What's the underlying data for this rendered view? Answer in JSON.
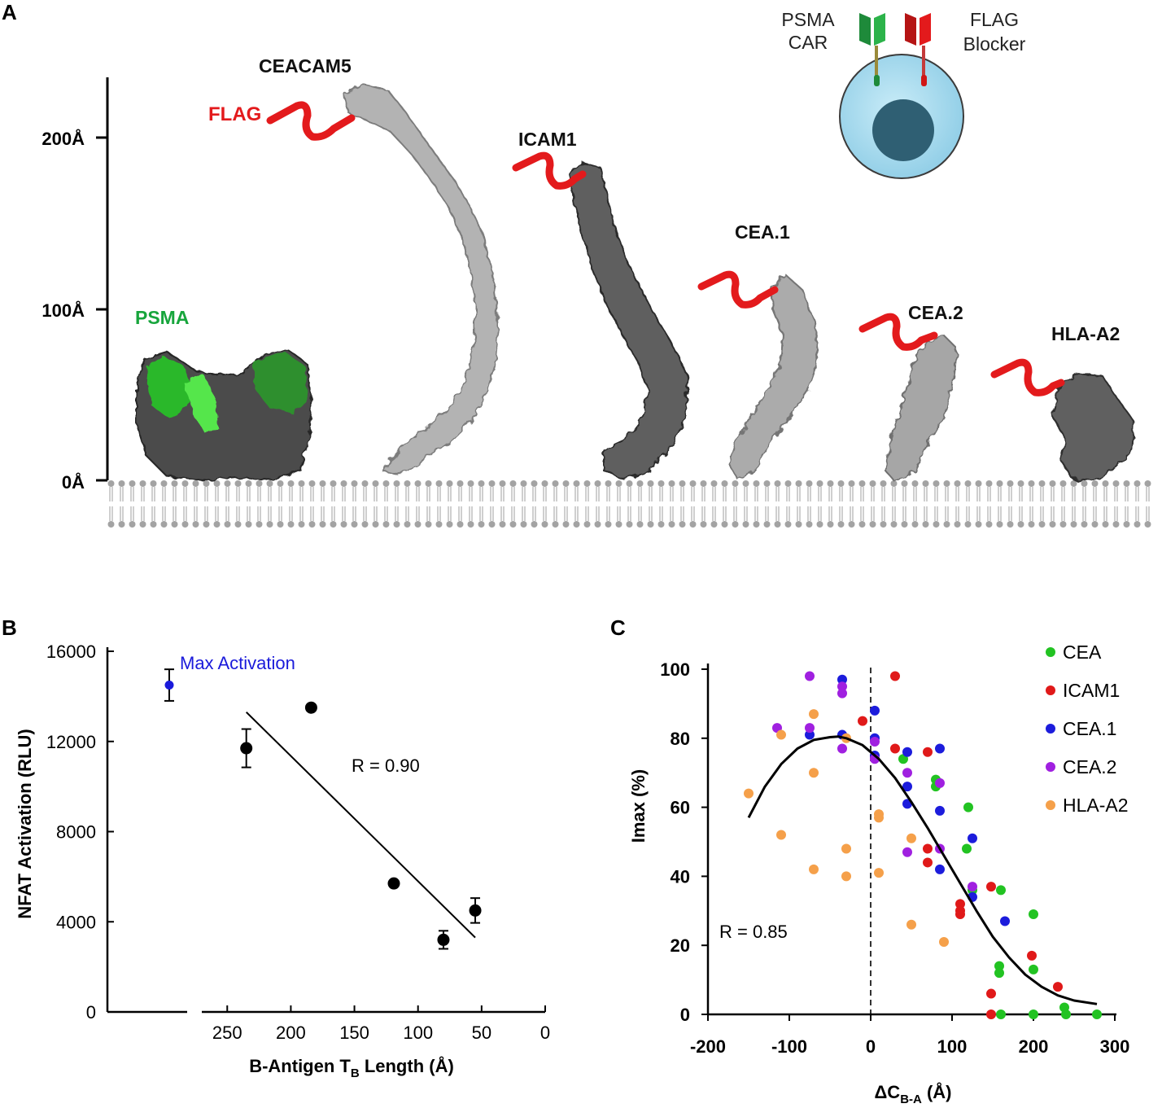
{
  "panel_A": {
    "label": "A",
    "height_ticks": [
      "200Å",
      "100Å",
      "0Å"
    ],
    "molecules": [
      "CEACAM5",
      "ICAM1",
      "CEA.1",
      "CEA.2",
      "HLA-A2"
    ],
    "psma_label": "PSMA",
    "flag_label": "FLAG",
    "inset": {
      "car_label_1": "PSMA",
      "car_label_2": "CAR",
      "blocker_label_1": "FLAG",
      "blocker_label_2": "Blocker"
    },
    "colors": {
      "flag": "#e31a1c",
      "psma": "#17a53c",
      "protein_light": "#a8a8a8",
      "protein_dark": "#5a5a5a",
      "cell": "#a9dbef",
      "nucleus": "#2f5f73"
    }
  },
  "chart_data": [
    {
      "panel": "B",
      "type": "scatter",
      "xlabel_main": "B-Antigen T",
      "xlabel_sub": "B",
      "xlabel_tail": " Length (Å)",
      "ylabel": "NFAT Activation (RLU)",
      "xlim": [
        270,
        0
      ],
      "ylim": [
        0,
        16000
      ],
      "xticks": [
        "250",
        "200",
        "150",
        "100",
        "50",
        "0"
      ],
      "yticks": [
        "0",
        "4000",
        "8000",
        "12000",
        "16000"
      ],
      "annotation": "R = 0.90",
      "max_activation": {
        "label": "Max Activation",
        "value": 14500,
        "err": 700,
        "color": "#1a1adb"
      },
      "points": [
        {
          "x": 235,
          "y": 11700,
          "err": 850
        },
        {
          "x": 184,
          "y": 13500,
          "err": 0
        },
        {
          "x": 119,
          "y": 5700,
          "err": 0
        },
        {
          "x": 80,
          "y": 3200,
          "err": 400
        },
        {
          "x": 55,
          "y": 4500,
          "err": 550
        }
      ],
      "fit_line": [
        [
          235,
          13300
        ],
        [
          55,
          3300
        ]
      ]
    },
    {
      "panel": "C",
      "type": "scatter",
      "xlabel_main": "ΔC",
      "xlabel_sub": "B-A",
      "xlabel_tail": " (Å)",
      "ylabel": "Imax (%)",
      "xlim": [
        -200,
        300
      ],
      "ylim": [
        0,
        100
      ],
      "xticks": [
        "-200",
        "-100",
        "0",
        "100",
        "200",
        "300"
      ],
      "yticks": [
        "0",
        "20",
        "40",
        "60",
        "80",
        "100"
      ],
      "annotation": "R = 0.85",
      "legend_position": "top-right",
      "series": [
        {
          "name": "CEA",
          "color": "#22c322",
          "points": [
            [
              40,
              74
            ],
            [
              80,
              68
            ],
            [
              80,
              66
            ],
            [
              120,
              60
            ],
            [
              118,
              48
            ],
            [
              125,
              36
            ],
            [
              160,
              36
            ],
            [
              158,
              14
            ],
            [
              158,
              12
            ],
            [
              200,
              29
            ],
            [
              200,
              13
            ],
            [
              160,
              0
            ],
            [
              200,
              0
            ],
            [
              238,
              2
            ],
            [
              240,
              0
            ],
            [
              278,
              0
            ]
          ]
        },
        {
          "name": "ICAM1",
          "color": "#e01919",
          "points": [
            [
              30,
              98
            ],
            [
              -10,
              85
            ],
            [
              30,
              77
            ],
            [
              70,
              76
            ],
            [
              70,
              48
            ],
            [
              70,
              44
            ],
            [
              110,
              32
            ],
            [
              110,
              30
            ],
            [
              110,
              29
            ],
            [
              148,
              37
            ],
            [
              198,
              17
            ],
            [
              230,
              8
            ],
            [
              148,
              6
            ],
            [
              148,
              0
            ]
          ]
        },
        {
          "name": "CEA.1",
          "color": "#1c1cdc",
          "points": [
            [
              -35,
              97
            ],
            [
              5,
              88
            ],
            [
              5,
              80
            ],
            [
              5,
              75
            ],
            [
              45,
              76
            ],
            [
              45,
              66
            ],
            [
              45,
              61
            ],
            [
              85,
              77
            ],
            [
              85,
              59
            ],
            [
              85,
              42
            ],
            [
              125,
              51
            ],
            [
              125,
              34
            ],
            [
              165,
              27
            ],
            [
              -75,
              81
            ],
            [
              -35,
              81
            ]
          ]
        },
        {
          "name": "CEA.2",
          "color": "#a020e0",
          "points": [
            [
              -75,
              98
            ],
            [
              -35,
              95
            ],
            [
              -35,
              93
            ],
            [
              -115,
              83
            ],
            [
              -75,
              83
            ],
            [
              -35,
              77
            ],
            [
              5,
              79
            ],
            [
              5,
              74
            ],
            [
              45,
              70
            ],
            [
              45,
              47
            ],
            [
              85,
              67
            ],
            [
              85,
              48
            ],
            [
              125,
              37
            ]
          ]
        },
        {
          "name": "HLA-A2",
          "color": "#f5a04a",
          "points": [
            [
              -150,
              64
            ],
            [
              -110,
              81
            ],
            [
              -110,
              52
            ],
            [
              -70,
              87
            ],
            [
              -70,
              70
            ],
            [
              -70,
              42
            ],
            [
              -30,
              80
            ],
            [
              -30,
              48
            ],
            [
              -30,
              40
            ],
            [
              10,
              58
            ],
            [
              10,
              57
            ],
            [
              10,
              41
            ],
            [
              50,
              51
            ],
            [
              50,
              26
            ],
            [
              90,
              21
            ]
          ]
        }
      ],
      "fit_curve": [
        [
          -150,
          57
        ],
        [
          -130,
          66
        ],
        [
          -110,
          72.5
        ],
        [
          -90,
          77
        ],
        [
          -70,
          79.5
        ],
        [
          -50,
          80.3
        ],
        [
          -40,
          80.5
        ],
        [
          -30,
          80
        ],
        [
          -10,
          78
        ],
        [
          10,
          74
        ],
        [
          30,
          68.5
        ],
        [
          50,
          61.5
        ],
        [
          70,
          54
        ],
        [
          90,
          46
        ],
        [
          110,
          38
        ],
        [
          130,
          30
        ],
        [
          150,
          22.5
        ],
        [
          170,
          16.5
        ],
        [
          190,
          11.5
        ],
        [
          210,
          8
        ],
        [
          230,
          5.5
        ],
        [
          250,
          4
        ],
        [
          278,
          3
        ]
      ]
    }
  ]
}
